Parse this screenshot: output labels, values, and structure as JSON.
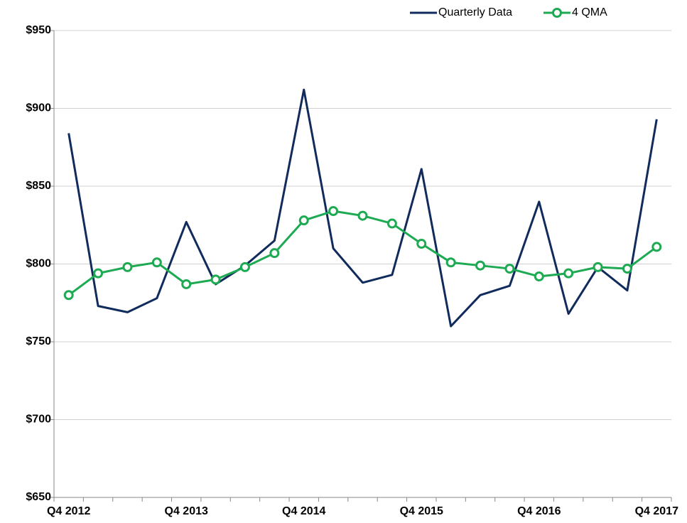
{
  "chart_data": {
    "type": "line",
    "categories": [
      "Q4 2012",
      null,
      null,
      null,
      "Q4 2013",
      null,
      null,
      null,
      "Q4 2014",
      null,
      null,
      null,
      "Q4 2015",
      null,
      null,
      null,
      "Q4 2016",
      null,
      null,
      null,
      "Q4 2017"
    ],
    "series": [
      {
        "name": "Quarterly Data",
        "color": "#102b5c",
        "marker": false,
        "values": [
          884,
          773,
          769,
          778,
          827,
          787,
          799,
          815,
          912,
          810,
          788,
          793,
          861,
          760,
          780,
          786,
          840,
          768,
          798,
          783,
          893
        ]
      },
      {
        "name": "4 QMA",
        "color": "#1daa52",
        "marker": true,
        "values": [
          780,
          794,
          798,
          801,
          787,
          790,
          798,
          807,
          828,
          834,
          831,
          826,
          813,
          801,
          799,
          797,
          792,
          794,
          798,
          797,
          811
        ]
      }
    ],
    "ylim": [
      650,
      950
    ],
    "yticks": [
      {
        "value": 650,
        "label": "$650"
      },
      {
        "value": 700,
        "label": "$700"
      },
      {
        "value": 750,
        "label": "$750"
      },
      {
        "value": 800,
        "label": "$800"
      },
      {
        "value": 850,
        "label": "$850"
      },
      {
        "value": 900,
        "label": "$900"
      },
      {
        "value": 950,
        "label": "$950"
      }
    ],
    "grid": true,
    "legend": "top-right"
  }
}
